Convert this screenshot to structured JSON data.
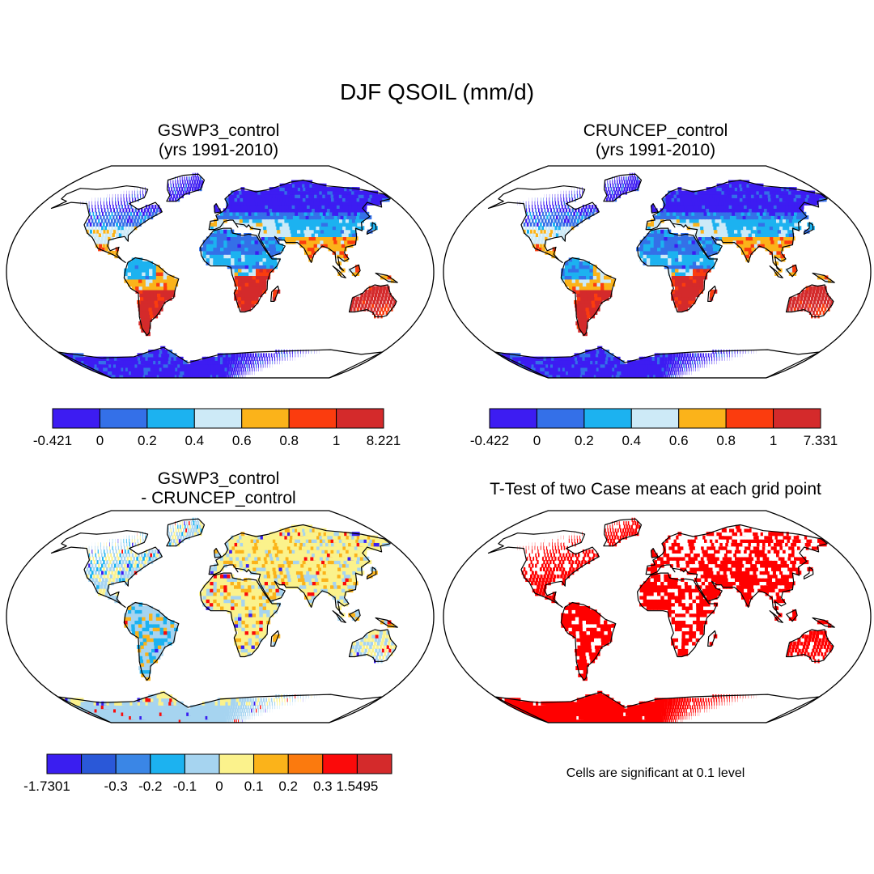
{
  "figure": {
    "title": "DJF QSOIL (mm/d)",
    "significance_note": "Cells are significant at 0.1 level"
  },
  "chart_data": [
    {
      "type": "heatmap",
      "id": "gswp3",
      "title_line1": "GSWP3_control",
      "title_line2": "(yrs 1991-2010)",
      "projection": "Robinson world map",
      "colorbar": {
        "colors": [
          "#3d1cf2",
          "#3470e8",
          "#1cb2f0",
          "#cdeaf7",
          "#fbb31a",
          "#fb3c0e",
          "#d42a2b"
        ],
        "tick_labels": [
          "-0.421",
          "0",
          "0.2",
          "0.4",
          "0.6",
          "0.8",
          "1",
          "8.221"
        ],
        "min": -0.421,
        "max": 8.221
      }
    },
    {
      "type": "heatmap",
      "id": "cruncep",
      "title_line1": "CRUNCEP_control",
      "title_line2": "(yrs 1991-2010)",
      "projection": "Robinson world map",
      "colorbar": {
        "colors": [
          "#3d1cf2",
          "#3470e8",
          "#1cb2f0",
          "#cdeaf7",
          "#fbb31a",
          "#fb3c0e",
          "#d42a2b"
        ],
        "tick_labels": [
          "-0.422",
          "0",
          "0.2",
          "0.4",
          "0.6",
          "0.8",
          "1",
          "7.331"
        ],
        "min": -0.422,
        "max": 7.331
      }
    },
    {
      "type": "heatmap",
      "id": "diff",
      "title_line1": "GSWP3_control",
      "title_line2": "- CRUNCEP_control",
      "projection": "Robinson world map",
      "colorbar": {
        "colors": [
          "#3a1ef0",
          "#2a58d8",
          "#3a86e6",
          "#1cb2f0",
          "#a6d4f0",
          "#fbf28c",
          "#fbb31a",
          "#fb7a0e",
          "#fb0a0a",
          "#d42a2b"
        ],
        "tick_labels": [
          "-1.7301",
          "-0.3",
          "-0.2",
          "-0.1",
          "0",
          "0.1",
          "0.2",
          "0.3",
          "1.5495"
        ],
        "min": -1.7301,
        "max": 1.5495
      }
    },
    {
      "type": "heatmap",
      "id": "ttest",
      "title_line1": "T-Test of two Case means at each grid point",
      "title_line2": "",
      "projection": "Robinson world map",
      "colors": [
        "#ff0000",
        "#ffffff"
      ]
    }
  ]
}
